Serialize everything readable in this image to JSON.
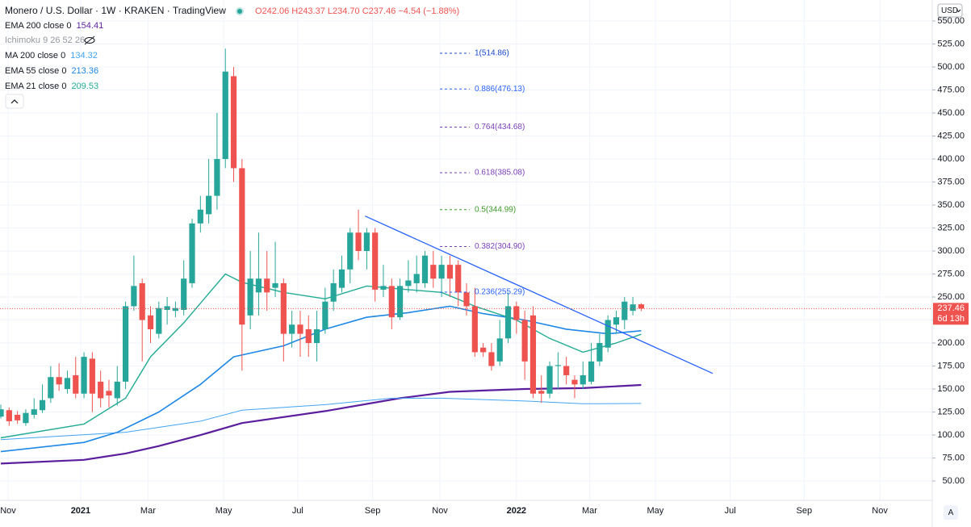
{
  "chart_data": {
    "type": "candlestick",
    "title": "Monero / U.S. Dollar · 1W · KRAKEN · TradingView",
    "ohlc_text": "O242.06 H243.37 L234.70 C237.46 −4.54 (−1.88%)",
    "currency": "USD",
    "last_price_label": "237.46",
    "countdown": "6d 13h",
    "auto_button": "A",
    "up_color": "#26a69a",
    "down_color": "#ef5350",
    "grid": true,
    "xlim": [
      -0.1,
      112
    ],
    "ylim": [
      29,
      572.8
    ],
    "xticks": [
      {
        "value": 0.87,
        "label": "Nov"
      },
      {
        "value": 9.6,
        "label": "2021"
      },
      {
        "value": 17.7,
        "label": "Mar"
      },
      {
        "value": 26.8,
        "label": "May"
      },
      {
        "value": 35.7,
        "label": "Jul"
      },
      {
        "value": 44.7,
        "label": "Sep"
      },
      {
        "value": 52.8,
        "label": "Nov"
      },
      {
        "value": 62.0,
        "label": "2022"
      },
      {
        "value": 70.8,
        "label": "Mar"
      },
      {
        "value": 78.7,
        "label": "May"
      },
      {
        "value": 87.7,
        "label": "Jul"
      },
      {
        "value": 96.6,
        "label": "Sep"
      },
      {
        "value": 105.7,
        "label": "Nov"
      }
    ],
    "yticks": [
      {
        "value": 50,
        "label": "50.00"
      },
      {
        "value": 75,
        "label": "75.00"
      },
      {
        "value": 100,
        "label": "100.00"
      },
      {
        "value": 125,
        "label": "125.00"
      },
      {
        "value": 150,
        "label": "150.00"
      },
      {
        "value": 175,
        "label": "175.00"
      },
      {
        "value": 200,
        "label": "200.00"
      },
      {
        "value": 225,
        "label": "225.00"
      },
      {
        "value": 250,
        "label": "250.00"
      },
      {
        "value": 275,
        "label": "275.00"
      },
      {
        "value": 300,
        "label": "300.00"
      },
      {
        "value": 325,
        "label": "325.00"
      },
      {
        "value": 350,
        "label": "350.00"
      },
      {
        "value": 375,
        "label": "375.00"
      },
      {
        "value": 400,
        "label": "400.00"
      },
      {
        "value": 425,
        "label": "425.00"
      },
      {
        "value": 450,
        "label": "450.00"
      },
      {
        "value": 475,
        "label": "475.00"
      },
      {
        "value": 500,
        "label": "500.00"
      },
      {
        "value": 525,
        "label": "525.00"
      },
      {
        "value": 550,
        "label": "550.00"
      }
    ],
    "candles": {
      "open": [
        120,
        127,
        122,
        113,
        122,
        127,
        140,
        163,
        150,
        165,
        145,
        183,
        158,
        148,
        140,
        158,
        240,
        265,
        230,
        210,
        236,
        235,
        236,
        265,
        330,
        340,
        360,
        400,
        490,
        390,
        230,
        255,
        270,
        260,
        265,
        210,
        220,
        215,
        200,
        215,
        245,
        260,
        280,
        320,
        300,
        320,
        258,
        262,
        228,
        262,
        265,
        265,
        285,
        270,
        285,
        285,
        255,
        240,
        195,
        190,
        180,
        205,
        240,
        225,
        230,
        148,
        145,
        175,
        175,
        160,
        155,
        158,
        180,
        195,
        220,
        225,
        235,
        242.06
      ],
      "close": [
        128,
        115,
        116,
        124,
        128,
        138,
        163,
        155,
        162,
        145,
        185,
        145,
        140,
        143,
        158,
        240,
        262,
        225,
        215,
        238,
        240,
        238,
        270,
        330,
        345,
        360,
        400,
        495,
        390,
        220,
        270,
        270,
        255,
        265,
        210,
        220,
        210,
        200,
        215,
        245,
        265,
        280,
        320,
        300,
        320,
        258,
        262,
        228,
        262,
        268,
        275,
        295,
        270,
        285,
        270,
        255,
        240,
        190,
        190,
        175,
        205,
        240,
        225,
        180,
        145,
        145,
        175,
        176,
        165,
        155,
        165,
        180,
        200,
        225,
        228,
        245,
        242,
        237.46
      ],
      "high": [
        133,
        130,
        126,
        128,
        140,
        155,
        175,
        178,
        170,
        185,
        190,
        190,
        170,
        160,
        175,
        245,
        295,
        270,
        240,
        245,
        250,
        245,
        290,
        335,
        360,
        400,
        450,
        520,
        500,
        400,
        300,
        320,
        300,
        310,
        270,
        235,
        235,
        230,
        235,
        260,
        280,
        295,
        325,
        345,
        325,
        325,
        285,
        270,
        270,
        290,
        295,
        300,
        300,
        295,
        295,
        290,
        265,
        260,
        200,
        200,
        225,
        255,
        245,
        235,
        240,
        165,
        180,
        190,
        185,
        165,
        180,
        200,
        210,
        230,
        235,
        250,
        250,
        243.37
      ],
      "low": [
        118,
        110,
        112,
        110,
        118,
        124,
        135,
        148,
        145,
        140,
        140,
        125,
        130,
        130,
        132,
        150,
        235,
        180,
        200,
        205,
        220,
        228,
        230,
        260,
        320,
        330,
        345,
        390,
        375,
        170,
        215,
        230,
        235,
        250,
        180,
        195,
        185,
        185,
        180,
        210,
        235,
        255,
        265,
        290,
        280,
        245,
        250,
        215,
        225,
        255,
        255,
        260,
        260,
        250,
        250,
        240,
        230,
        185,
        185,
        170,
        175,
        200,
        210,
        160,
        140,
        135,
        140,
        150,
        155,
        140,
        150,
        155,
        175,
        190,
        210,
        215,
        230,
        234.7
      ]
    },
    "series": [
      {
        "name": "EMA 200 close 0",
        "value_label": "154.41",
        "color": "#5b1f9e",
        "width": 2.2,
        "x": [
          0,
          10,
          15,
          19,
          24,
          29,
          39,
          48,
          54,
          63,
          70,
          77
        ],
        "values": [
          69,
          73,
          80,
          88,
          100,
          113,
          126,
          140,
          147,
          150,
          151,
          154.41
        ]
      },
      {
        "name": "MA 200 close 0",
        "value_label": "134.32",
        "color": "#42a5f5",
        "width": 1,
        "x": [
          0,
          15,
          24,
          29,
          39,
          47,
          53,
          63,
          70,
          77
        ],
        "values": [
          95,
          103,
          115,
          127,
          133,
          140,
          140,
          137,
          134,
          134.32
        ]
      },
      {
        "name": "EMA 55 close 0",
        "value_label": "213.36",
        "color": "#1e88e5",
        "width": 1.6,
        "x": [
          0,
          10,
          14,
          19,
          24,
          28,
          34,
          39,
          44,
          49,
          54,
          58,
          63,
          68,
          73,
          77
        ],
        "values": [
          82,
          92,
          103,
          125,
          155,
          185,
          197,
          215,
          228,
          233,
          240,
          232,
          225,
          215,
          210,
          213.36
        ]
      },
      {
        "name": "EMA 21 close 0",
        "value_label": "209.53",
        "color": "#22ab94",
        "width": 1.4,
        "x": [
          0,
          10,
          15,
          18,
          22,
          27,
          29,
          34,
          39,
          44,
          49,
          53,
          57,
          62,
          66,
          70,
          74,
          77
        ],
        "values": [
          97,
          112,
          140,
          185,
          222,
          275,
          266,
          255,
          248,
          262,
          258,
          255,
          240,
          225,
          205,
          190,
          200,
          209.53
        ]
      }
    ],
    "ichimoku_label": "Ichimoku 9 26 52 26",
    "trend_line": {
      "color": "#2962ff",
      "x": [
        43.8,
        85.6
      ],
      "values": [
        338,
        167
      ]
    },
    "fib_levels": [
      {
        "label": "1(514.86)",
        "value": 514.86,
        "color": "#1848cc"
      },
      {
        "label": "0.886(476.13)",
        "value": 476.13,
        "color": "#2962ff"
      },
      {
        "label": "0.764(434.68)",
        "value": 434.68,
        "color": "#7b3fb8"
      },
      {
        "label": "0.618(385.08)",
        "value": 385.08,
        "color": "#7b3fb8"
      },
      {
        "label": "0.5(344.99)",
        "value": 344.99,
        "color": "#3d9a2a"
      },
      {
        "label": "0.382(304.90)",
        "value": 304.9,
        "color": "#7b3fb8"
      },
      {
        "label": "0.236(255.29)",
        "value": 255.29,
        "color": "#2962ff"
      }
    ]
  }
}
